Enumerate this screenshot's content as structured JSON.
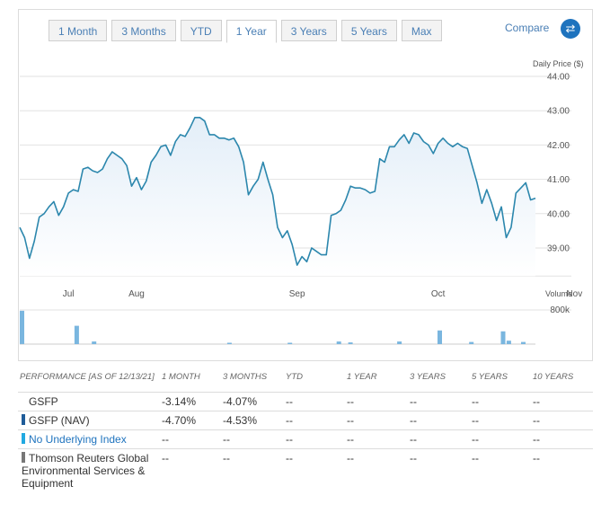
{
  "tabs": [
    {
      "label": "1 Month",
      "active": false
    },
    {
      "label": "3 Months",
      "active": false
    },
    {
      "label": "YTD",
      "active": false
    },
    {
      "label": "1 Year",
      "active": true
    },
    {
      "label": "3 Years",
      "active": false
    },
    {
      "label": "5 Years",
      "active": false
    },
    {
      "label": "Max",
      "active": false
    }
  ],
  "compare_label": "Compare",
  "compare_icon": "swap-arrows-icon",
  "colors": {
    "line": "#2c87ad",
    "area": "#e3eef8",
    "volume": "#7ab6df",
    "accent": "#1e73be",
    "nav_swatch": "#1f5c99",
    "index_swatch": "#21a9e1",
    "benchmark_swatch": "#777777"
  },
  "chart_data": {
    "type": "line",
    "ylabel": "Daily Price ($)",
    "ylim": [
      38.0,
      44.0
    ],
    "yticks": [
      "44.00",
      "43.00",
      "42.00",
      "41.00",
      "40.00",
      "39.00"
    ],
    "ytick_values": [
      44,
      43,
      42,
      41,
      40,
      39
    ],
    "month_labels": [
      {
        "label": "Jul",
        "index": 10
      },
      {
        "label": "Aug",
        "index": 24
      },
      {
        "label": "Sep",
        "index": 57
      },
      {
        "label": "Oct",
        "index": 86
      },
      {
        "label": "Nov",
        "index": 114
      }
    ],
    "grid": true,
    "series": [
      {
        "values": [
          39.6,
          39.3,
          38.7,
          39.2,
          39.9,
          40.0,
          40.2,
          40.35,
          39.95,
          40.2,
          40.6,
          40.7,
          40.65,
          41.3,
          41.35,
          41.25,
          41.2,
          41.3,
          41.6,
          41.8,
          41.7,
          41.6,
          41.4,
          40.8,
          41.05,
          40.7,
          40.95,
          41.5,
          41.7,
          41.95,
          42.0,
          41.7,
          42.1,
          42.3,
          42.25,
          42.5,
          42.8,
          42.8,
          42.7,
          42.3,
          42.3,
          42.2,
          42.2,
          42.15,
          42.2,
          41.95,
          41.5,
          40.55,
          40.8,
          41.0,
          41.5,
          41.0,
          40.55,
          39.6,
          39.3,
          39.5,
          39.1,
          38.5,
          38.75,
          38.6,
          39.0,
          38.9,
          38.8,
          38.8,
          39.95,
          40.0,
          40.1,
          40.4,
          40.8,
          40.75,
          40.75,
          40.7,
          40.6,
          40.65,
          41.6,
          41.5,
          41.95,
          41.95,
          42.15,
          42.3,
          42.05,
          42.35,
          42.3,
          42.1,
          42.0,
          41.75,
          42.05,
          42.2,
          42.05,
          41.95,
          42.05,
          41.95,
          41.9,
          41.4,
          40.9,
          40.3,
          40.7,
          40.3,
          39.8,
          40.2,
          39.3,
          39.6,
          40.6,
          40.75,
          40.9,
          40.4,
          40.45
        ]
      }
    ],
    "volume": {
      "label": "Volume",
      "tick": "800k",
      "max": 800000,
      "bars": [
        {
          "index": 0,
          "value": 780000
        },
        {
          "index": 19,
          "value": 430000
        },
        {
          "index": 25,
          "value": 60000
        },
        {
          "index": 72,
          "value": 30000
        },
        {
          "index": 93,
          "value": 30000
        },
        {
          "index": 110,
          "value": 60000
        },
        {
          "index": 114,
          "value": 40000
        },
        {
          "index": 131,
          "value": 60000
        },
        {
          "index": 145,
          "value": 320000
        },
        {
          "index": 156,
          "value": 50000
        },
        {
          "index": 167,
          "value": 300000
        },
        {
          "index": 169,
          "value": 80000
        },
        {
          "index": 174,
          "value": 50000
        }
      ]
    }
  },
  "performance": {
    "header": [
      "PERFORMANCE [as of 12/13/21]",
      "1 MONTH",
      "3 MONTHS",
      "YTD",
      "1 YEAR",
      "3 YEARS",
      "5 YEARS",
      "10 YEARS"
    ],
    "rows": [
      {
        "name": "GSFP",
        "swatch": "",
        "link": false,
        "values": [
          "-3.14%",
          "-4.07%",
          "--",
          "--",
          "--",
          "--",
          "--"
        ]
      },
      {
        "name": "GSFP (NAV)",
        "swatch": "#1f5c99",
        "link": false,
        "values": [
          "-4.70%",
          "-4.53%",
          "--",
          "--",
          "--",
          "--",
          "--"
        ]
      },
      {
        "name": "No Underlying Index",
        "swatch": "#21a9e1",
        "link": true,
        "values": [
          "--",
          "--",
          "--",
          "--",
          "--",
          "--",
          "--"
        ]
      },
      {
        "name": "Thomson Reuters Global Environmental Services & Equipment",
        "swatch": "#777777",
        "link": false,
        "values": [
          "--",
          "--",
          "--",
          "--",
          "--",
          "--",
          "--"
        ]
      }
    ]
  }
}
